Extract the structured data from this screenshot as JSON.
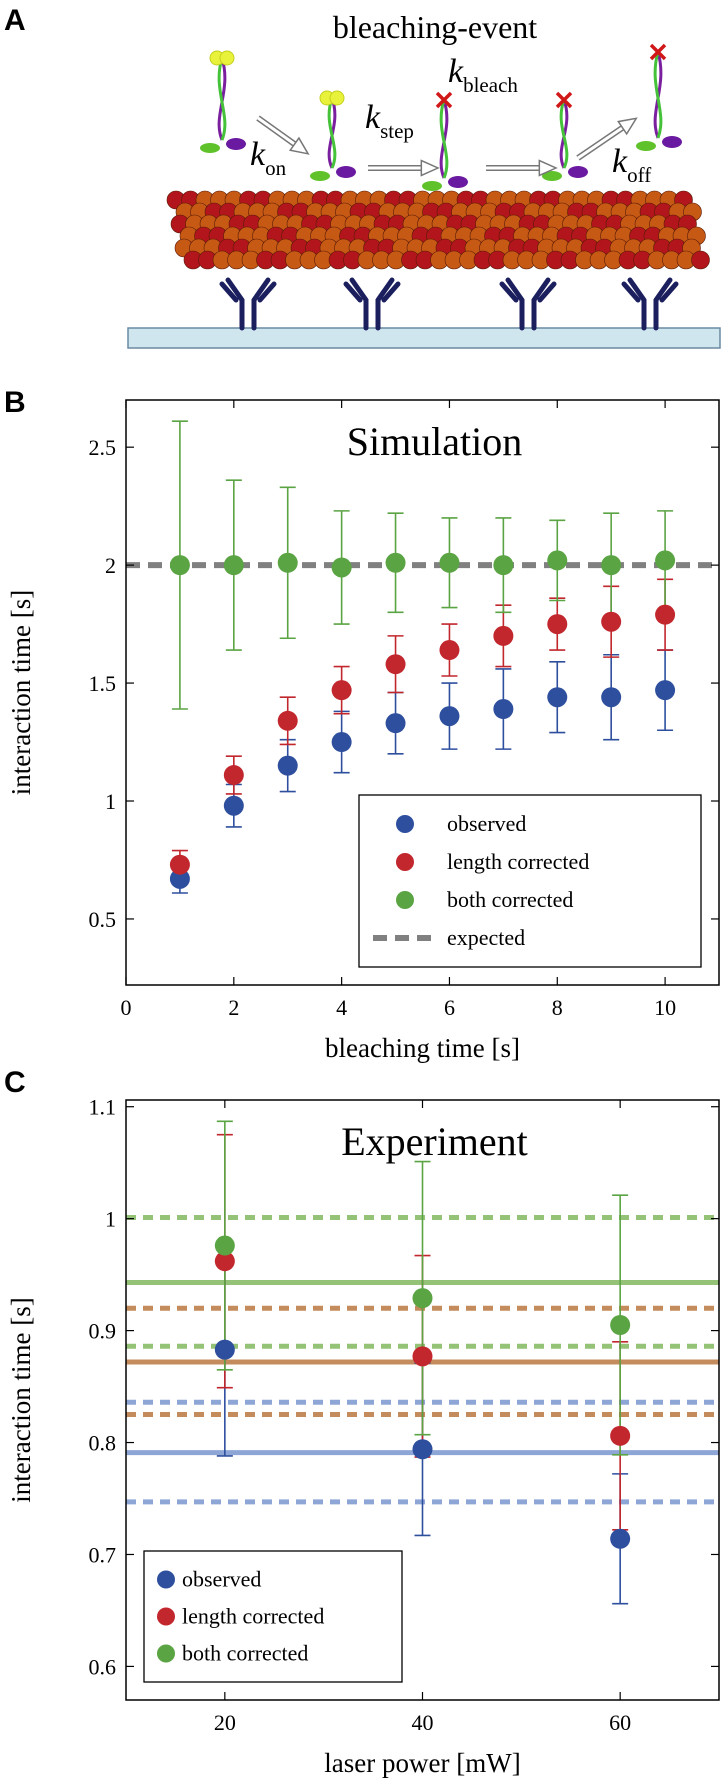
{
  "panels": [
    "A",
    "B",
    "C"
  ],
  "illustration": {
    "title": "bleaching-event",
    "rates": [
      {
        "symbol": "k",
        "subscript": "on"
      },
      {
        "symbol": "k",
        "subscript": "step"
      },
      {
        "symbol": "k",
        "subscript": "bleach"
      },
      {
        "symbol": "k",
        "subscript": "off"
      }
    ]
  },
  "chart_data": [
    {
      "type": "scatter",
      "title": "Simulation",
      "x_label": "bleaching time [s]",
      "y_label": "interaction time [s]",
      "x": [
        1,
        2,
        3,
        4,
        5,
        6,
        7,
        8,
        9,
        10
      ],
      "xlim": [
        0,
        11
      ],
      "ylim": [
        0.22,
        2.7
      ],
      "xticks": [
        0,
        2,
        4,
        6,
        8,
        10
      ],
      "yticks": [
        0.5,
        1,
        1.5,
        2,
        2.5
      ],
      "legend": "lower right",
      "series": [
        {
          "name": "observed",
          "color": "#2e4f9e",
          "values": [
            0.67,
            0.98,
            1.15,
            1.25,
            1.33,
            1.36,
            1.39,
            1.44,
            1.44,
            1.47
          ],
          "errors": [
            0.06,
            0.09,
            0.11,
            0.13,
            0.13,
            0.14,
            0.17,
            0.15,
            0.18,
            0.17
          ]
        },
        {
          "name": "length corrected",
          "color": "#c1272d",
          "values": [
            0.73,
            1.11,
            1.34,
            1.47,
            1.58,
            1.64,
            1.7,
            1.75,
            1.76,
            1.79
          ],
          "errors": [
            0.06,
            0.08,
            0.1,
            0.1,
            0.12,
            0.11,
            0.13,
            0.11,
            0.15,
            0.15
          ]
        },
        {
          "name": "both corrected",
          "color": "#5ba443",
          "values": [
            2.0,
            2.0,
            2.01,
            1.99,
            2.01,
            2.01,
            2.0,
            2.02,
            2.0,
            2.02
          ],
          "errors": [
            0.61,
            0.36,
            0.32,
            0.24,
            0.21,
            0.19,
            0.2,
            0.17,
            0.22,
            0.21
          ]
        }
      ],
      "reference_lines": [
        {
          "name": "expected",
          "value": 2,
          "color": "#808080",
          "style": "dashed"
        }
      ]
    },
    {
      "type": "scatter",
      "title": "Experiment",
      "x_label": "laser power [mW]",
      "y_label": "interaction time [s]",
      "x": [
        20,
        40,
        60
      ],
      "xlim": [
        10,
        70
      ],
      "ylim": [
        0.57,
        1.106
      ],
      "xticks": [
        20,
        40,
        60
      ],
      "yticks": [
        0.6,
        0.7,
        0.8,
        0.9,
        1,
        1.1
      ],
      "legend": "lower left",
      "series": [
        {
          "name": "observed",
          "color": "#2e4f9e",
          "values": [
            0.883,
            0.794,
            0.714
          ],
          "errors": [
            0.095,
            0.077,
            0.058
          ]
        },
        {
          "name": "length corrected",
          "color": "#c1272d",
          "values": [
            0.962,
            0.877,
            0.806
          ],
          "errors": [
            0.113,
            0.09,
            0.084
          ]
        },
        {
          "name": "both corrected",
          "color": "#5ba443",
          "values": [
            0.976,
            0.929,
            0.905
          ],
          "errors": [
            0.111,
            0.122,
            0.116
          ]
        }
      ],
      "hlines": [
        {
          "value": 0.791,
          "color": "#8ea6d6",
          "style": "solid"
        },
        {
          "value": 0.836,
          "color": "#8ea6d6",
          "style": "dashed"
        },
        {
          "value": 0.747,
          "color": "#8ea6d6",
          "style": "dashed"
        },
        {
          "value": 0.872,
          "color": "#c48c5c",
          "style": "solid"
        },
        {
          "value": 0.92,
          "color": "#c48c5c",
          "style": "dashed"
        },
        {
          "value": 0.825,
          "color": "#c48c5c",
          "style": "dashed"
        },
        {
          "value": 0.943,
          "color": "#94c277",
          "style": "solid"
        },
        {
          "value": 1.001,
          "color": "#94c277",
          "style": "dashed"
        },
        {
          "value": 0.886,
          "color": "#94c277",
          "style": "dashed"
        }
      ]
    }
  ]
}
